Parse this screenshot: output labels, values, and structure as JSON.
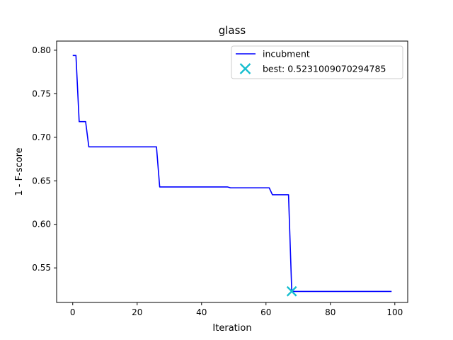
{
  "chart_data": {
    "type": "line",
    "title": "glass",
    "xlabel": "Iteration",
    "ylabel": "1 - F-score",
    "xlim": [
      -5,
      104
    ],
    "ylim": [
      0.5103,
      0.8105
    ],
    "xticks": [
      0,
      20,
      40,
      60,
      80,
      100
    ],
    "yticks": [
      0.55,
      0.6,
      0.65,
      0.7,
      0.75,
      0.8
    ],
    "xtick_labels": [
      "0",
      "20",
      "40",
      "60",
      "80",
      "100"
    ],
    "ytick_labels": [
      "0.55",
      "0.60",
      "0.65",
      "0.70",
      "0.75",
      "0.80"
    ],
    "grid": false,
    "legend_position": "top-right",
    "series": [
      {
        "name": "incubment",
        "color": "#0000ff",
        "x": [
          0,
          1,
          2,
          4,
          5,
          26,
          27,
          48,
          49,
          61,
          62,
          67,
          68,
          99
        ],
        "y": [
          0.794,
          0.794,
          0.718,
          0.718,
          0.689,
          0.689,
          0.643,
          0.643,
          0.642,
          0.642,
          0.634,
          0.634,
          0.523,
          0.523
        ]
      }
    ],
    "best_marker": {
      "label": "best: 0.5231009070294785",
      "x": 68,
      "y": 0.5231009070294785,
      "color": "#17becf",
      "symbol": "x-icon"
    }
  }
}
